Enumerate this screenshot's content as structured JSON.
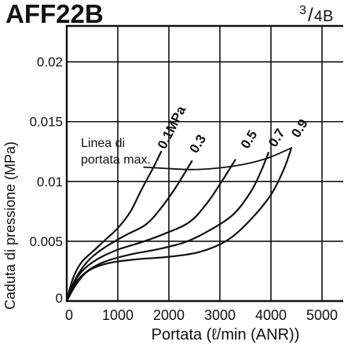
{
  "chart_data": {
    "type": "line",
    "title": "AFF22B",
    "port_size": {
      "num": "3",
      "sep": "/",
      "den": "4",
      "suffix": "B"
    },
    "xlabel": "Portata (ℓ/min (ANR))",
    "ylabel": "Caduta di pressione (MPa)",
    "xlim": [
      0,
      5400
    ],
    "ylim": [
      0,
      0.023
    ],
    "grid": true,
    "xticks": [
      {
        "value": 0,
        "label": "0"
      },
      {
        "value": 1000,
        "label": "1000"
      },
      {
        "value": 2000,
        "label": "2000"
      },
      {
        "value": 3000,
        "label": "3000"
      },
      {
        "value": 4000,
        "label": "4000"
      },
      {
        "value": 5000,
        "label": "5000"
      }
    ],
    "yticks": [
      {
        "value": 0,
        "label": "0"
      },
      {
        "value": 0.005,
        "label": "0.005"
      },
      {
        "value": 0.01,
        "label": "0.01"
      },
      {
        "value": 0.015,
        "label": "0.015"
      },
      {
        "value": 0.02,
        "label": "0.02"
      }
    ],
    "series": [
      {
        "name": "0.1MPa",
        "x": [
          0,
          50,
          150,
          300,
          550,
          750,
          1000,
          1250,
          1450,
          1700,
          1850
        ],
        "y": [
          0,
          0.0009,
          0.0022,
          0.0033,
          0.0043,
          0.0051,
          0.0061,
          0.0075,
          0.0092,
          0.0112,
          0.0125
        ]
      },
      {
        "name": "0.3",
        "x": [
          0,
          80,
          230,
          450,
          750,
          1150,
          1550,
          1850,
          2150,
          2450
        ],
        "y": [
          0,
          0.001,
          0.0023,
          0.0035,
          0.0045,
          0.0055,
          0.0064,
          0.0078,
          0.0096,
          0.0117
        ]
      },
      {
        "name": "0.5",
        "x": [
          0,
          100,
          300,
          600,
          1000,
          1450,
          1900,
          2400,
          2750,
          3050,
          3300
        ],
        "y": [
          0,
          0.0012,
          0.0025,
          0.0035,
          0.0043,
          0.0049,
          0.0056,
          0.0066,
          0.0082,
          0.0101,
          0.0118
        ]
      },
      {
        "name": "0.7",
        "x": [
          0,
          150,
          400,
          750,
          1250,
          1750,
          2300,
          2750,
          3250,
          3600,
          3800,
          3950
        ],
        "y": [
          0,
          0.0014,
          0.0025,
          0.0033,
          0.0039,
          0.0043,
          0.0049,
          0.0058,
          0.0072,
          0.0091,
          0.0108,
          0.0124
        ]
      },
      {
        "name": "0.9",
        "x": [
          0,
          200,
          450,
          850,
          1400,
          2000,
          2600,
          3150,
          3600,
          4000,
          4250,
          4400
        ],
        "y": [
          0,
          0.0015,
          0.0026,
          0.0032,
          0.0035,
          0.0037,
          0.0041,
          0.0051,
          0.0068,
          0.0089,
          0.011,
          0.0128
        ]
      }
    ],
    "max_flow_line": {
      "label_lines": [
        "Linea di",
        "portata max."
      ],
      "x": [
        1500,
        1900,
        2550,
        3300,
        3900,
        4400
      ],
      "y": [
        0.0112,
        0.0111,
        0.011,
        0.0113,
        0.0119,
        0.0128
      ]
    },
    "colors": {
      "ink": "#111111",
      "background": "#ffffff"
    }
  }
}
